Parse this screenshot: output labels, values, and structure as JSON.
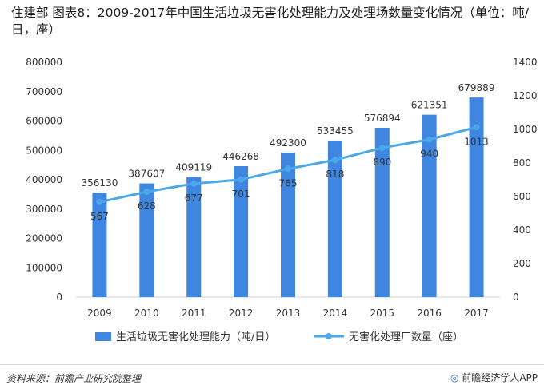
{
  "title": "住建部  图表8：2009-2017年中国生活垃圾无害化处理能力及处理场数量变化情况（单位：吨/日，座）",
  "chart_data": {
    "type": "bar",
    "categories": [
      "2009",
      "2010",
      "2011",
      "2012",
      "2013",
      "2014",
      "2015",
      "2016",
      "2017"
    ],
    "series": [
      {
        "name": "生活垃圾无害化处理能力（吨/日）",
        "type": "bar",
        "axis": "left",
        "color": "#3f86e0",
        "values": [
          356130,
          387607,
          409119,
          446268,
          492300,
          533455,
          576894,
          621351,
          679889
        ]
      },
      {
        "name": "无害化处理厂数量（座）",
        "type": "line",
        "axis": "right",
        "color": "#4aa8e8",
        "values": [
          567,
          628,
          677,
          701,
          765,
          818,
          890,
          940,
          1013
        ]
      }
    ],
    "left_axis": {
      "ylim": [
        0,
        800000
      ],
      "ticks": [
        "0",
        "100000",
        "200000",
        "300000",
        "400000",
        "500000",
        "600000",
        "700000",
        "800000"
      ]
    },
    "right_axis": {
      "ylim": [
        0,
        1400
      ],
      "ticks": [
        "0",
        "200",
        "400",
        "600",
        "800",
        "1000",
        "1200",
        "1400"
      ]
    },
    "legend_position": "bottom",
    "grid": false
  },
  "footer": {
    "source": "资料来源：前瞻产业研究院整理",
    "brand_logo": "◎",
    "brand_text": "前瞻经济学人APP"
  }
}
